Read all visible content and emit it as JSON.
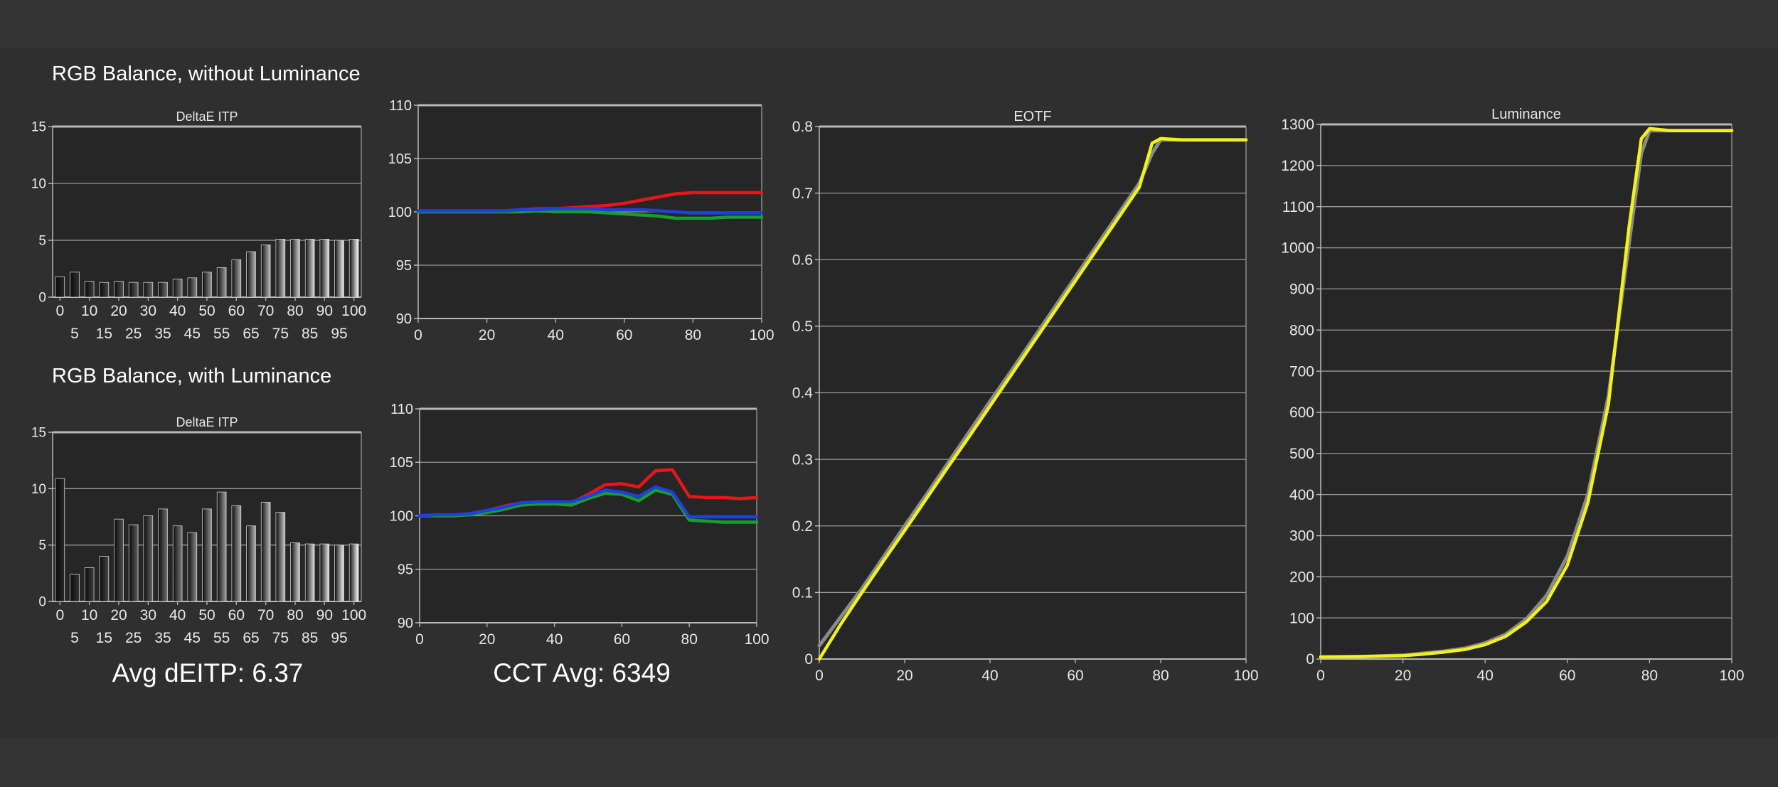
{
  "sections": {
    "top_title": "RGB Balance, without Luminance",
    "bottom_title": "RGB Balance, with Luminance"
  },
  "stats": {
    "avg_deitp": "Avg dEITP: 6.37",
    "cct_avg": "CCT Avg: 6349"
  },
  "colors": {
    "red": "#e8161b",
    "green": "#16a02a",
    "blue": "#1f3fe0",
    "measured": "#f2f21a",
    "target": "#8a8a8a",
    "plot_bg": "#262626",
    "grid": "#9a9a9a"
  },
  "chart_data": [
    {
      "id": "deltae_top",
      "type": "bar",
      "title": "DeltaE ITP",
      "ylim": [
        0,
        15
      ],
      "yticks": [
        "0",
        "5",
        "10",
        "15"
      ],
      "categories": [
        "0",
        "5",
        "10",
        "15",
        "20",
        "25",
        "30",
        "35",
        "40",
        "45",
        "50",
        "55",
        "60",
        "65",
        "70",
        "75",
        "80",
        "85",
        "90",
        "95",
        "100"
      ],
      "values": [
        1.8,
        2.2,
        1.4,
        1.3,
        1.4,
        1.3,
        1.3,
        1.3,
        1.6,
        1.7,
        2.2,
        2.6,
        3.3,
        4.0,
        4.6,
        5.1,
        5.1,
        5.1,
        5.1,
        5.0,
        5.1
      ],
      "xticks_row1": [
        "0",
        "10",
        "20",
        "30",
        "40",
        "50",
        "60",
        "70",
        "80",
        "90",
        "100"
      ],
      "xticks_row2": [
        "5",
        "15",
        "25",
        "35",
        "45",
        "55",
        "65",
        "75",
        "85",
        "95"
      ],
      "grid": true
    },
    {
      "id": "rgb_top",
      "type": "line",
      "title": "",
      "xlim": [
        0,
        100
      ],
      "ylim": [
        90,
        110
      ],
      "xticks": [
        "0",
        "20",
        "40",
        "60",
        "80",
        "100"
      ],
      "yticks": [
        "90",
        "95",
        "100",
        "105",
        "110"
      ],
      "x": [
        0,
        5,
        10,
        15,
        20,
        25,
        30,
        35,
        40,
        45,
        50,
        55,
        60,
        65,
        70,
        75,
        80,
        85,
        90,
        95,
        100
      ],
      "series": [
        {
          "color": "red",
          "values": [
            100.0,
            100.0,
            100.0,
            100.0,
            100.0,
            100.1,
            100.2,
            100.3,
            100.3,
            100.4,
            100.5,
            100.6,
            100.8,
            101.1,
            101.4,
            101.7,
            101.8,
            101.8,
            101.8,
            101.8,
            101.8
          ]
        },
        {
          "color": "green",
          "values": [
            100.0,
            100.0,
            100.0,
            100.0,
            100.0,
            100.0,
            100.0,
            100.1,
            100.0,
            100.0,
            100.0,
            99.9,
            99.8,
            99.7,
            99.6,
            99.4,
            99.4,
            99.4,
            99.5,
            99.5,
            99.5
          ]
        },
        {
          "color": "blue",
          "values": [
            100.1,
            100.1,
            100.1,
            100.1,
            100.1,
            100.1,
            100.2,
            100.2,
            100.3,
            100.3,
            100.3,
            100.2,
            100.2,
            100.2,
            100.1,
            100.0,
            99.9,
            99.9,
            99.9,
            99.9,
            99.9
          ]
        }
      ],
      "grid": true
    },
    {
      "id": "eotf",
      "type": "line",
      "title": "EOTF",
      "xlim": [
        0,
        100
      ],
      "ylim": [
        0,
        0.8
      ],
      "xticks": [
        "0",
        "20",
        "40",
        "60",
        "80",
        "100"
      ],
      "yticks": [
        "0",
        "0.1",
        "0.2",
        "0.3",
        "0.4",
        "0.5",
        "0.6",
        "0.7",
        "0.8"
      ],
      "x": [
        0,
        5,
        10,
        15,
        20,
        25,
        30,
        35,
        40,
        45,
        50,
        55,
        60,
        65,
        70,
        75,
        78,
        80,
        85,
        90,
        95,
        100
      ],
      "series": [
        {
          "color": "target",
          "values": [
            0.02,
            0.063,
            0.106,
            0.153,
            0.2,
            0.246,
            0.293,
            0.34,
            0.387,
            0.433,
            0.48,
            0.527,
            0.574,
            0.621,
            0.668,
            0.715,
            0.76,
            0.78,
            0.78,
            0.78,
            0.78,
            0.78
          ]
        },
        {
          "color": "measured",
          "values": [
            0.0,
            0.052,
            0.1,
            0.147,
            0.193,
            0.24,
            0.287,
            0.333,
            0.38,
            0.427,
            0.474,
            0.521,
            0.568,
            0.615,
            0.662,
            0.709,
            0.775,
            0.782,
            0.78,
            0.78,
            0.78,
            0.78
          ]
        }
      ],
      "grid": true
    },
    {
      "id": "luminance",
      "type": "line",
      "title": "Luminance",
      "xlim": [
        0,
        100
      ],
      "ylim": [
        0,
        1300
      ],
      "xticks": [
        "0",
        "20",
        "40",
        "60",
        "80",
        "100"
      ],
      "yticks": [
        "0",
        "100",
        "200",
        "300",
        "400",
        "500",
        "600",
        "700",
        "800",
        "900",
        "1000",
        "1100",
        "1200",
        "1300"
      ],
      "x": [
        0,
        10,
        20,
        25,
        30,
        35,
        40,
        45,
        50,
        55,
        60,
        65,
        70,
        75,
        78,
        80,
        85,
        90,
        95,
        100
      ],
      "series": [
        {
          "color": "target",
          "values": [
            5,
            6,
            9,
            14,
            19,
            26,
            39,
            60,
            97,
            155,
            250,
            400,
            640,
            1010,
            1230,
            1285,
            1285,
            1285,
            1285,
            1285
          ]
        },
        {
          "color": "measured",
          "values": [
            5,
            6,
            8,
            12,
            17,
            23,
            35,
            55,
            90,
            140,
            228,
            380,
            620,
            1050,
            1265,
            1290,
            1285,
            1285,
            1285,
            1285
          ]
        }
      ],
      "grid": true
    },
    {
      "id": "deltae_bottom",
      "type": "bar",
      "title": "DeltaE ITP",
      "ylim": [
        0,
        15
      ],
      "yticks": [
        "0",
        "5",
        "10",
        "15"
      ],
      "categories": [
        "0",
        "5",
        "10",
        "15",
        "20",
        "25",
        "30",
        "35",
        "40",
        "45",
        "50",
        "55",
        "60",
        "65",
        "70",
        "75",
        "80",
        "85",
        "90",
        "95",
        "100"
      ],
      "values": [
        10.9,
        2.4,
        3.0,
        4.0,
        7.3,
        6.8,
        7.6,
        8.2,
        6.7,
        6.1,
        8.2,
        9.7,
        8.5,
        6.7,
        8.8,
        7.9,
        5.2,
        5.1,
        5.1,
        5.0,
        5.1
      ],
      "xticks_row1": [
        "0",
        "10",
        "20",
        "30",
        "40",
        "50",
        "60",
        "70",
        "80",
        "90",
        "100"
      ],
      "xticks_row2": [
        "5",
        "15",
        "25",
        "35",
        "45",
        "55",
        "65",
        "75",
        "85",
        "95"
      ],
      "grid": true
    },
    {
      "id": "rgb_bottom",
      "type": "line",
      "title": "",
      "xlim": [
        0,
        100
      ],
      "ylim": [
        90,
        110
      ],
      "xticks": [
        "0",
        "20",
        "40",
        "60",
        "80",
        "100"
      ],
      "yticks": [
        "90",
        "95",
        "100",
        "105",
        "110"
      ],
      "x": [
        0,
        5,
        10,
        15,
        20,
        25,
        30,
        35,
        40,
        45,
        50,
        55,
        60,
        65,
        70,
        75,
        80,
        85,
        90,
        95,
        100
      ],
      "series": [
        {
          "color": "red",
          "values": [
            100.0,
            100.0,
            100.0,
            100.2,
            100.5,
            100.9,
            101.2,
            101.3,
            101.2,
            101.2,
            102.0,
            102.9,
            103.0,
            102.7,
            104.2,
            104.3,
            101.8,
            101.7,
            101.7,
            101.6,
            101.7
          ]
        },
        {
          "color": "green",
          "values": [
            100.0,
            100.0,
            100.0,
            100.1,
            100.3,
            100.6,
            101.0,
            101.1,
            101.1,
            101.0,
            101.6,
            102.1,
            102.0,
            101.4,
            102.4,
            102.0,
            99.6,
            99.5,
            99.4,
            99.4,
            99.4
          ]
        },
        {
          "color": "blue",
          "values": [
            100.0,
            100.1,
            100.1,
            100.2,
            100.5,
            100.8,
            101.2,
            101.3,
            101.3,
            101.3,
            101.8,
            102.4,
            102.2,
            101.8,
            102.7,
            102.2,
            99.9,
            99.9,
            99.9,
            99.9,
            99.9
          ]
        }
      ],
      "grid": true
    }
  ]
}
